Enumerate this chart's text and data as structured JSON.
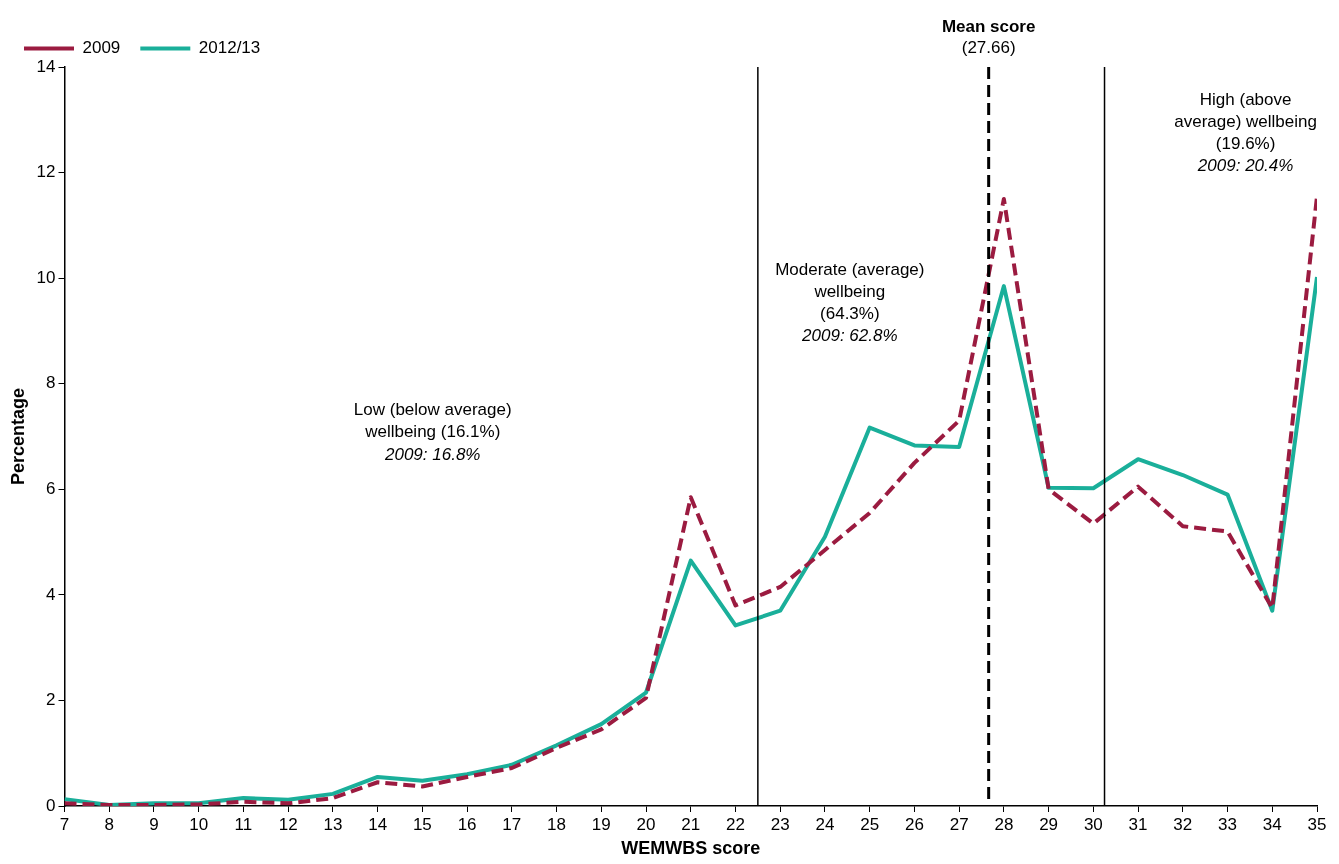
{
  "chart_data": {
    "type": "line",
    "xlabel": "WEMWBS score",
    "ylabel": "Percentage",
    "x": [
      7,
      8,
      9,
      10,
      11,
      12,
      13,
      14,
      15,
      16,
      17,
      18,
      19,
      20,
      21,
      22,
      23,
      24,
      25,
      26,
      27,
      28,
      29,
      30,
      31,
      32,
      33,
      34,
      35
    ],
    "xlim": [
      7,
      35
    ],
    "xticks": [
      7,
      8,
      9,
      10,
      11,
      12,
      13,
      14,
      15,
      16,
      17,
      18,
      19,
      20,
      21,
      22,
      23,
      24,
      25,
      26,
      27,
      28,
      29,
      30,
      31,
      32,
      33,
      34,
      35
    ],
    "ylim": [
      0,
      14
    ],
    "yticks": [
      0,
      2,
      4,
      6,
      8,
      10,
      12,
      14
    ],
    "series": [
      {
        "name": "2009",
        "color": "#9b1b40",
        "line_style": "dashed",
        "values": [
          0.05,
          0.02,
          0.02,
          0.03,
          0.08,
          0.05,
          0.15,
          0.45,
          0.37,
          0.55,
          0.72,
          1.1,
          1.45,
          2.05,
          5.85,
          3.8,
          4.15,
          4.85,
          5.55,
          6.5,
          7.3,
          11.5,
          6.0,
          5.35,
          6.05,
          5.3,
          5.2,
          3.75,
          11.55
        ]
      },
      {
        "name": "2012/13",
        "color": "#1aaf9a",
        "line_style": "solid",
        "values": [
          0.13,
          0.02,
          0.05,
          0.05,
          0.15,
          0.12,
          0.23,
          0.55,
          0.48,
          0.6,
          0.78,
          1.15,
          1.55,
          2.15,
          4.65,
          3.42,
          3.7,
          5.1,
          7.17,
          6.83,
          6.8,
          9.85,
          6.03,
          6.02,
          6.57,
          6.27,
          5.9,
          3.7,
          10.02
        ]
      }
    ],
    "ref_lines": [
      {
        "axis": "x",
        "value": 22.5,
        "color": "#000000",
        "line_style": "solid"
      },
      {
        "axis": "x",
        "value": 27.66,
        "label": "Mean score\n(27.66)",
        "color": "#000000",
        "line_style": "dashed"
      },
      {
        "axis": "x",
        "value": 30.25,
        "color": "#000000",
        "line_style": "solid"
      }
    ],
    "annotations": [
      "Low (below average)\nwellbeing (16.1%)\n2009: 16.8%",
      "Moderate (average)\nwellbeing\n(64.3%)\n2009: 62.8%",
      "High (above\naverage) wellbeing\n(19.6%)\n2009: 20.4%"
    ],
    "legend": "top",
    "grid": false,
    "marker": "none"
  }
}
